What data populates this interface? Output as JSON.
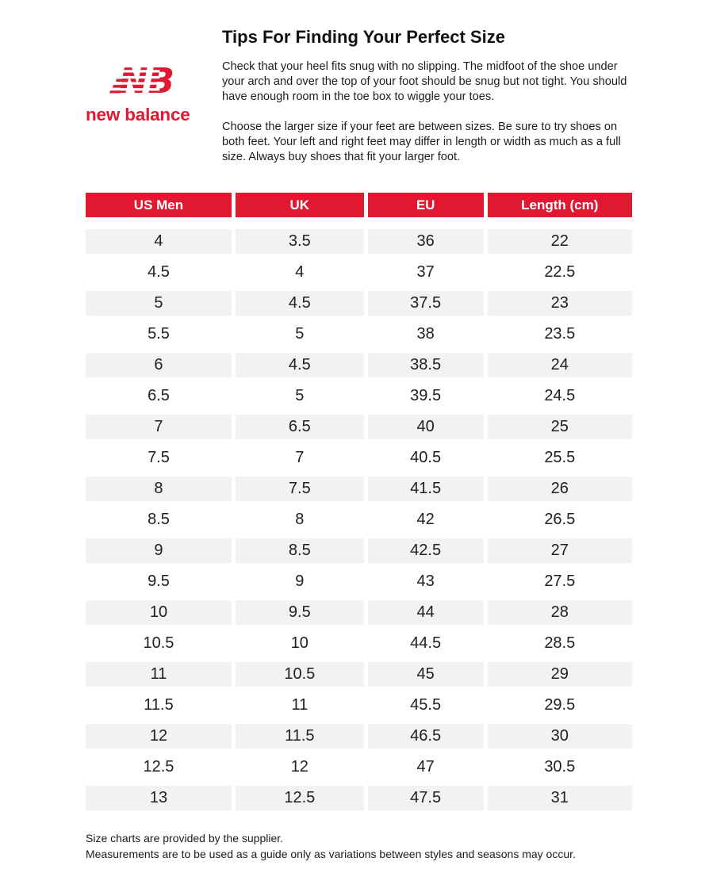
{
  "logo": {
    "wordmark": "new balance",
    "color": "#e01931"
  },
  "intro": {
    "title": "Tips For Finding Your Perfect Size",
    "paragraph1": "Check that your heel fits snug with no slipping. The midfoot of the shoe under your arch and over the top of your foot should be snug but not tight. You should have enough room in the toe box to wiggle your toes.",
    "paragraph2": "Choose the larger size if your feet are between sizes. Be sure to try shoes on both feet. Your left and right feet may differ in length or width as much as a full size. Always buy shoes that fit your larger foot."
  },
  "size_table": {
    "columns": [
      "US Men",
      "UK",
      "EU",
      "Length (cm)"
    ],
    "rows": [
      [
        "4",
        "3.5",
        "36",
        "22"
      ],
      [
        "4.5",
        "4",
        "37",
        "22.5"
      ],
      [
        "5",
        "4.5",
        "37.5",
        "23"
      ],
      [
        "5.5",
        "5",
        "38",
        "23.5"
      ],
      [
        "6",
        "4.5",
        "38.5",
        "24"
      ],
      [
        "6.5",
        "5",
        "39.5",
        "24.5"
      ],
      [
        "7",
        "6.5",
        "40",
        "25"
      ],
      [
        "7.5",
        "7",
        "40.5",
        "25.5"
      ],
      [
        "8",
        "7.5",
        "41.5",
        "26"
      ],
      [
        "8.5",
        "8",
        "42",
        "26.5"
      ],
      [
        "9",
        "8.5",
        "42.5",
        "27"
      ],
      [
        "9.5",
        "9",
        "43",
        "27.5"
      ],
      [
        "10",
        "9.5",
        "44",
        "28"
      ],
      [
        "10.5",
        "10",
        "44.5",
        "28.5"
      ],
      [
        "11",
        "10.5",
        "45",
        "29"
      ],
      [
        "11.5",
        "11",
        "45.5",
        "29.5"
      ],
      [
        "12",
        "11.5",
        "46.5",
        "30"
      ],
      [
        "12.5",
        "12",
        "47",
        "30.5"
      ],
      [
        "13",
        "12.5",
        "47.5",
        "31"
      ]
    ],
    "header_bg": "#e01931",
    "header_text_color": "#ffffff",
    "row_alt_bg": "#f2f2f2"
  },
  "footer": {
    "line1": "Size charts are provided by the supplier.",
    "line2": "Measurements are to be used as a guide only as variations between styles and seasons may occur."
  }
}
